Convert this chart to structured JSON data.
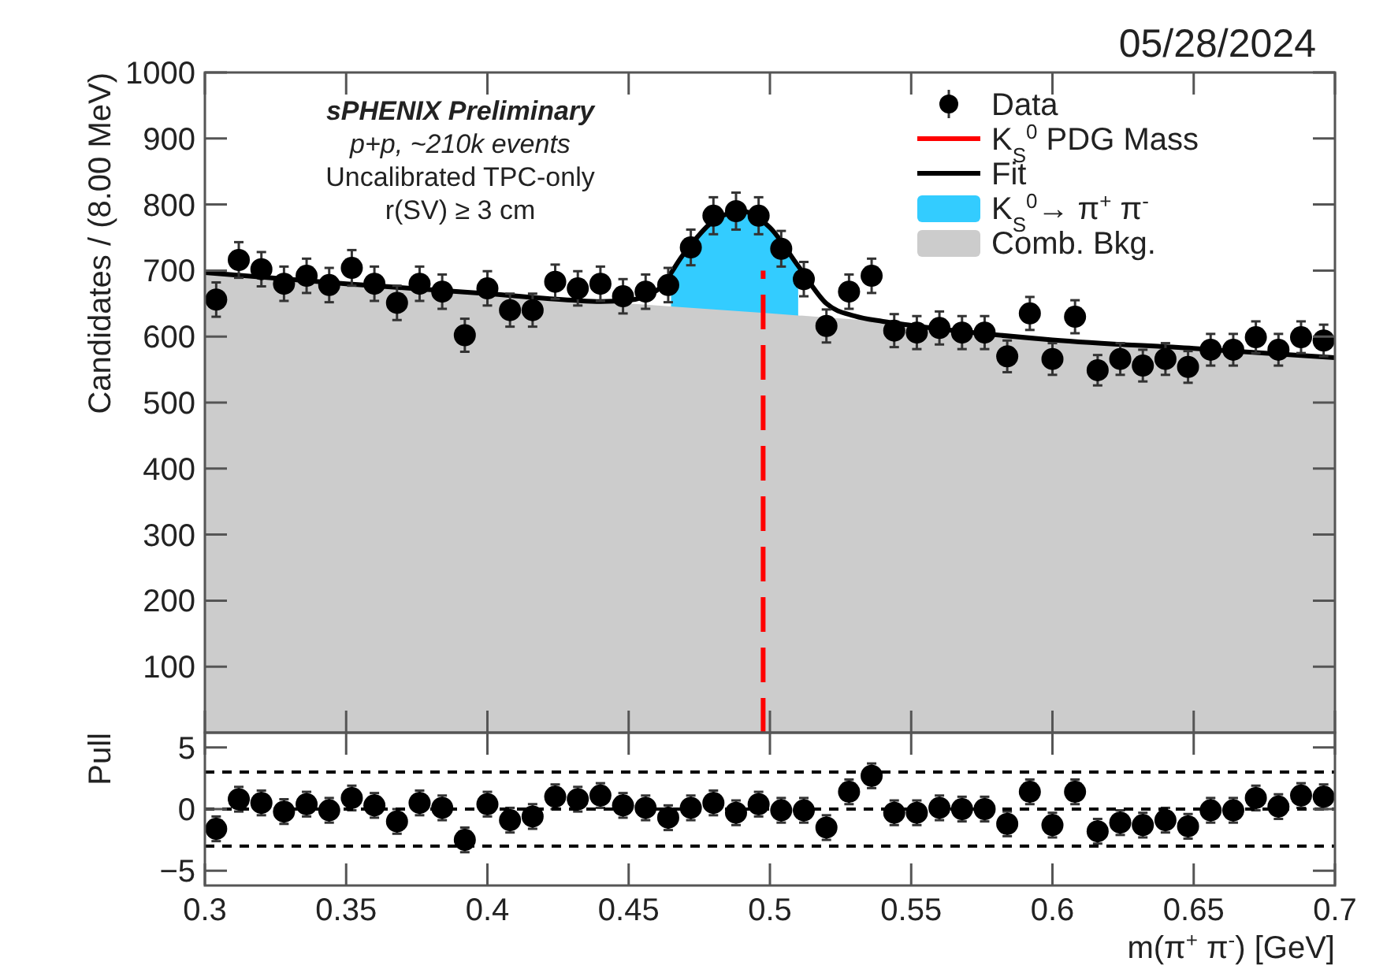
{
  "chart_data": [
    {
      "type": "scatter",
      "title": "05/28/2024",
      "ylabel": "Candidates / (8.00 MeV)",
      "annotations": [
        "sPHENIX Preliminary",
        "p+p, ~210k events",
        "Uncalibrated TPC-only",
        "r(SV) ≥ 3 cm"
      ],
      "xlim": [
        0.3,
        0.7
      ],
      "xticks": [
        0.3,
        0.35,
        0.4,
        0.45,
        0.5,
        0.55,
        0.6,
        0.65,
        0.7
      ],
      "ylim": [
        0,
        1000
      ],
      "yticks": [
        100,
        200,
        300,
        400,
        500,
        600,
        700,
        800,
        900,
        1000
      ],
      "tick_labels": "y",
      "grid": false,
      "legend": "top right",
      "series": [
        {
          "name": "Data",
          "type": "scatter",
          "marker": "circle",
          "color": "#000000",
          "x": [
            0.304,
            0.312,
            0.32,
            0.328,
            0.336,
            0.344,
            0.352,
            0.36,
            0.368,
            0.376,
            0.384,
            0.392,
            0.4,
            0.408,
            0.416,
            0.424,
            0.432,
            0.44,
            0.448,
            0.456,
            0.464,
            0.472,
            0.48,
            0.488,
            0.496,
            0.504,
            0.512,
            0.52,
            0.528,
            0.536,
            0.544,
            0.552,
            0.56,
            0.568,
            0.576,
            0.584,
            0.592,
            0.6,
            0.608,
            0.616,
            0.624,
            0.632,
            0.64,
            0.648,
            0.656,
            0.664,
            0.672,
            0.68,
            0.688,
            0.696
          ],
          "values": [
            656,
            716,
            702,
            680,
            692,
            678,
            704,
            680,
            651,
            680,
            668,
            602,
            673,
            640,
            640,
            683,
            673,
            680,
            661,
            668,
            678,
            735,
            783,
            790,
            783,
            733,
            687,
            616,
            668,
            692,
            609,
            606,
            613,
            606,
            606,
            570,
            635,
            566,
            630,
            549,
            566,
            556,
            566,
            554,
            580,
            580,
            599,
            580,
            599,
            594
          ],
          "errors": [
            26,
            27,
            26,
            26,
            26,
            26,
            27,
            26,
            26,
            26,
            26,
            25,
            26,
            25,
            25,
            26,
            26,
            26,
            26,
            26,
            26,
            27,
            28,
            28,
            28,
            27,
            26,
            25,
            26,
            26,
            25,
            25,
            25,
            25,
            25,
            24,
            25,
            24,
            25,
            23,
            24,
            24,
            24,
            24,
            24,
            24,
            24,
            24,
            24,
            24
          ]
        },
        {
          "name": "Fit",
          "type": "line",
          "color": "#000000",
          "x": [
            0.3,
            0.35,
            0.4,
            0.43,
            0.44,
            0.45,
            0.46,
            0.47,
            0.48,
            0.49,
            0.5,
            0.51,
            0.52,
            0.53,
            0.54,
            0.55,
            0.6,
            0.65,
            0.7
          ],
          "values": [
            697,
            680,
            665,
            655,
            653,
            655,
            670,
            728,
            775,
            790,
            765,
            707,
            650,
            631,
            623,
            617,
            595,
            582,
            568
          ]
        },
        {
          "name": "K$_{S}$$^{0}$→ π$^{+}$ π$^{-}$",
          "type": "area",
          "color": "#33ccff",
          "x": [
            0.465,
            0.47,
            0.48,
            0.49,
            0.5,
            0.51
          ],
          "values": [
            696,
            728,
            775,
            790,
            765,
            707
          ]
        },
        {
          "name": "Comb. Bkg.",
          "type": "area",
          "color": "#cccccc",
          "x": [
            0.3,
            0.35,
            0.4,
            0.43,
            0.44,
            0.45,
            0.46,
            0.47,
            0.48,
            0.49,
            0.5,
            0.51,
            0.52,
            0.53,
            0.54,
            0.55,
            0.6,
            0.65,
            0.7
          ],
          "values": [
            697,
            680,
            665,
            655,
            652,
            650,
            647,
            644,
            641,
            638,
            635,
            632,
            629,
            626,
            622,
            617,
            595,
            582,
            568
          ]
        }
      ],
      "ref_lines": [
        {
          "axis": "x",
          "value": 0.4976,
          "label": "K$_{S}$$^{0}$ PDG Mass",
          "color": "#ff0000",
          "line_style": "dashed"
        }
      ]
    },
    {
      "type": "scatter",
      "xlabel": "m(π$^{+}$ π$^{-}$) [GeV]",
      "ylabel": "Pull",
      "marker": "circle",
      "xlim": [
        0.3,
        0.7
      ],
      "xticks": [
        0.3,
        0.35,
        0.4,
        0.45,
        0.5,
        0.55,
        0.6,
        0.65,
        0.7
      ],
      "ylim": [
        -6.2,
        6.2
      ],
      "yticks": [
        {
          "value": -5,
          "label": "−5"
        },
        0,
        5
      ],
      "grid": false,
      "x": [
        0.304,
        0.312,
        0.32,
        0.328,
        0.336,
        0.344,
        0.352,
        0.36,
        0.368,
        0.376,
        0.384,
        0.392,
        0.4,
        0.408,
        0.416,
        0.424,
        0.432,
        0.44,
        0.448,
        0.456,
        0.464,
        0.472,
        0.48,
        0.488,
        0.496,
        0.504,
        0.512,
        0.52,
        0.528,
        0.536,
        0.544,
        0.552,
        0.56,
        0.568,
        0.576,
        0.584,
        0.592,
        0.6,
        0.608,
        0.616,
        0.624,
        0.632,
        0.64,
        0.648,
        0.656,
        0.664,
        0.672,
        0.68,
        0.688,
        0.696
      ],
      "values": [
        -1.6,
        0.8,
        0.5,
        -0.2,
        0.4,
        -0.1,
        0.9,
        0.3,
        -1.0,
        0.5,
        0.1,
        -2.5,
        0.4,
        -0.9,
        -0.6,
        1.0,
        0.8,
        1.1,
        0.3,
        0.1,
        -0.7,
        0.1,
        0.5,
        -0.3,
        0.4,
        -0.1,
        -0.1,
        -1.5,
        1.4,
        2.7,
        -0.3,
        -0.3,
        0.1,
        0,
        0,
        -1.2,
        1.4,
        -1.3,
        1.4,
        -1.8,
        -1.1,
        -1.3,
        -0.9,
        -1.4,
        -0.1,
        -0.1,
        0.9,
        0.2,
        1.1,
        1.0
      ],
      "errors": [
        1,
        1,
        1,
        1,
        1,
        1,
        1,
        1,
        1,
        1,
        1,
        1,
        1,
        1,
        1,
        1,
        1,
        1,
        1,
        1,
        1,
        1,
        1,
        1,
        1,
        1,
        1,
        1,
        1,
        1,
        1,
        1,
        1,
        1,
        1,
        1,
        1,
        1,
        1,
        1,
        1,
        1,
        1,
        1,
        1,
        1,
        1,
        1,
        1,
        1
      ],
      "ref_lines": [
        {
          "axis": "y",
          "value": 3,
          "color": "#000000",
          "line_style": "dashed"
        },
        {
          "axis": "y",
          "value": 0,
          "color": "#000000",
          "line_style": "dashed"
        },
        {
          "axis": "y",
          "value": -3,
          "color": "#000000",
          "line_style": "dashed"
        }
      ]
    }
  ]
}
